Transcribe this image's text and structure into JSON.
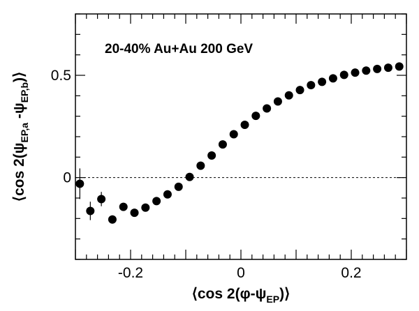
{
  "chart_data": {
    "type": "scatter",
    "title": "",
    "annotation": "20-40% Au+Au 200 GeV",
    "xlabel": {
      "pre": "⟨cos 2(φ-ψ",
      "sub": "EP",
      "post": ")⟩"
    },
    "ylabel": {
      "pre": "⟨cos 2(ψ",
      "sub1": "EP,a",
      "mid": " -ψ",
      "sub2": "EP,b",
      "post": ")⟩"
    },
    "xlim": [
      -0.3,
      0.3
    ],
    "ylim": [
      -0.4,
      0.8
    ],
    "xticks": [
      {
        "value": -0.2,
        "label": "-0.2"
      },
      {
        "value": 0,
        "label": "0"
      },
      {
        "value": 0.2,
        "label": "0.2"
      }
    ],
    "yticks": [
      {
        "value": 0,
        "label": "0"
      },
      {
        "value": 0.5,
        "label": "0.5"
      }
    ],
    "reference_line_y": 0,
    "grid": false,
    "legend": "none",
    "marker_color": "#000000",
    "points": [
      {
        "x": -0.292,
        "y": -0.03,
        "err": 0.075
      },
      {
        "x": -0.273,
        "y": -0.163,
        "err": 0.045
      },
      {
        "x": -0.253,
        "y": -0.105,
        "err": 0.035
      },
      {
        "x": -0.233,
        "y": -0.205,
        "err": 0.02
      },
      {
        "x": -0.213,
        "y": -0.143,
        "err": 0.015
      },
      {
        "x": -0.193,
        "y": -0.172,
        "err": 0.012
      },
      {
        "x": -0.173,
        "y": -0.147,
        "err": 0.01
      },
      {
        "x": -0.153,
        "y": -0.115,
        "err": 0.01
      },
      {
        "x": -0.133,
        "y": -0.082,
        "err": 0.009
      },
      {
        "x": -0.113,
        "y": -0.045,
        "err": 0.008
      },
      {
        "x": -0.093,
        "y": 0.003,
        "err": 0.007
      },
      {
        "x": -0.073,
        "y": 0.058,
        "err": 0.007
      },
      {
        "x": -0.053,
        "y": 0.108,
        "err": 0.007
      },
      {
        "x": -0.033,
        "y": 0.162,
        "err": 0.007
      },
      {
        "x": -0.013,
        "y": 0.212,
        "err": 0.007
      },
      {
        "x": 0.007,
        "y": 0.258,
        "err": 0.007
      },
      {
        "x": 0.027,
        "y": 0.302,
        "err": 0.007
      },
      {
        "x": 0.047,
        "y": 0.338,
        "err": 0.007
      },
      {
        "x": 0.067,
        "y": 0.372,
        "err": 0.007
      },
      {
        "x": 0.087,
        "y": 0.402,
        "err": 0.007
      },
      {
        "x": 0.107,
        "y": 0.428,
        "err": 0.007
      },
      {
        "x": 0.127,
        "y": 0.452,
        "err": 0.007
      },
      {
        "x": 0.147,
        "y": 0.468,
        "err": 0.007
      },
      {
        "x": 0.167,
        "y": 0.485,
        "err": 0.007
      },
      {
        "x": 0.187,
        "y": 0.502,
        "err": 0.007
      },
      {
        "x": 0.207,
        "y": 0.513,
        "err": 0.007
      },
      {
        "x": 0.227,
        "y": 0.523,
        "err": 0.007
      },
      {
        "x": 0.247,
        "y": 0.531,
        "err": 0.007
      },
      {
        "x": 0.267,
        "y": 0.537,
        "err": 0.007
      },
      {
        "x": 0.287,
        "y": 0.543,
        "err": 0.007
      }
    ]
  }
}
